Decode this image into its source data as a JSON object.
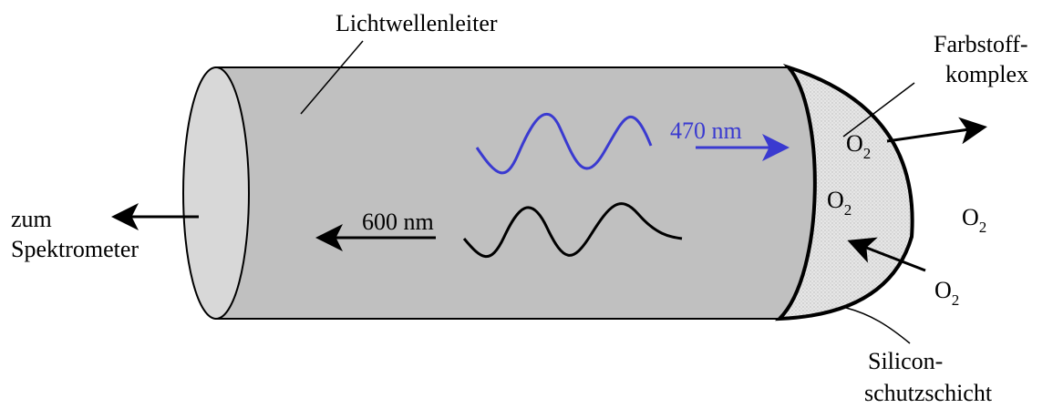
{
  "diagram": {
    "labels": {
      "fiber": "Lichtwellenleiter",
      "dye_line1": "Farbstoff-",
      "dye_line2": "komplex",
      "silicone_line1": "Silicon-",
      "silicone_line2": "schutzschicht",
      "spectrometer_line1": "zum",
      "spectrometer_line2": "Spektrometer",
      "excitation_wavelength": "470 nm",
      "emission_wavelength": "600 nm"
    },
    "oxygen": {
      "symbol": "O",
      "subscript": "2"
    },
    "colors": {
      "fiber_fill": "#c0c0c0",
      "end_cap_fill": "#d8d8d8",
      "dye_layer_fill": "#e4e4e4",
      "excitation_light": "#3a3ad0",
      "emission_light": "#000000",
      "outline": "#000000"
    },
    "icons": {
      "excitation_wave": "sine-wave",
      "emission_wave": "sine-wave",
      "arrows": "arrow"
    }
  }
}
